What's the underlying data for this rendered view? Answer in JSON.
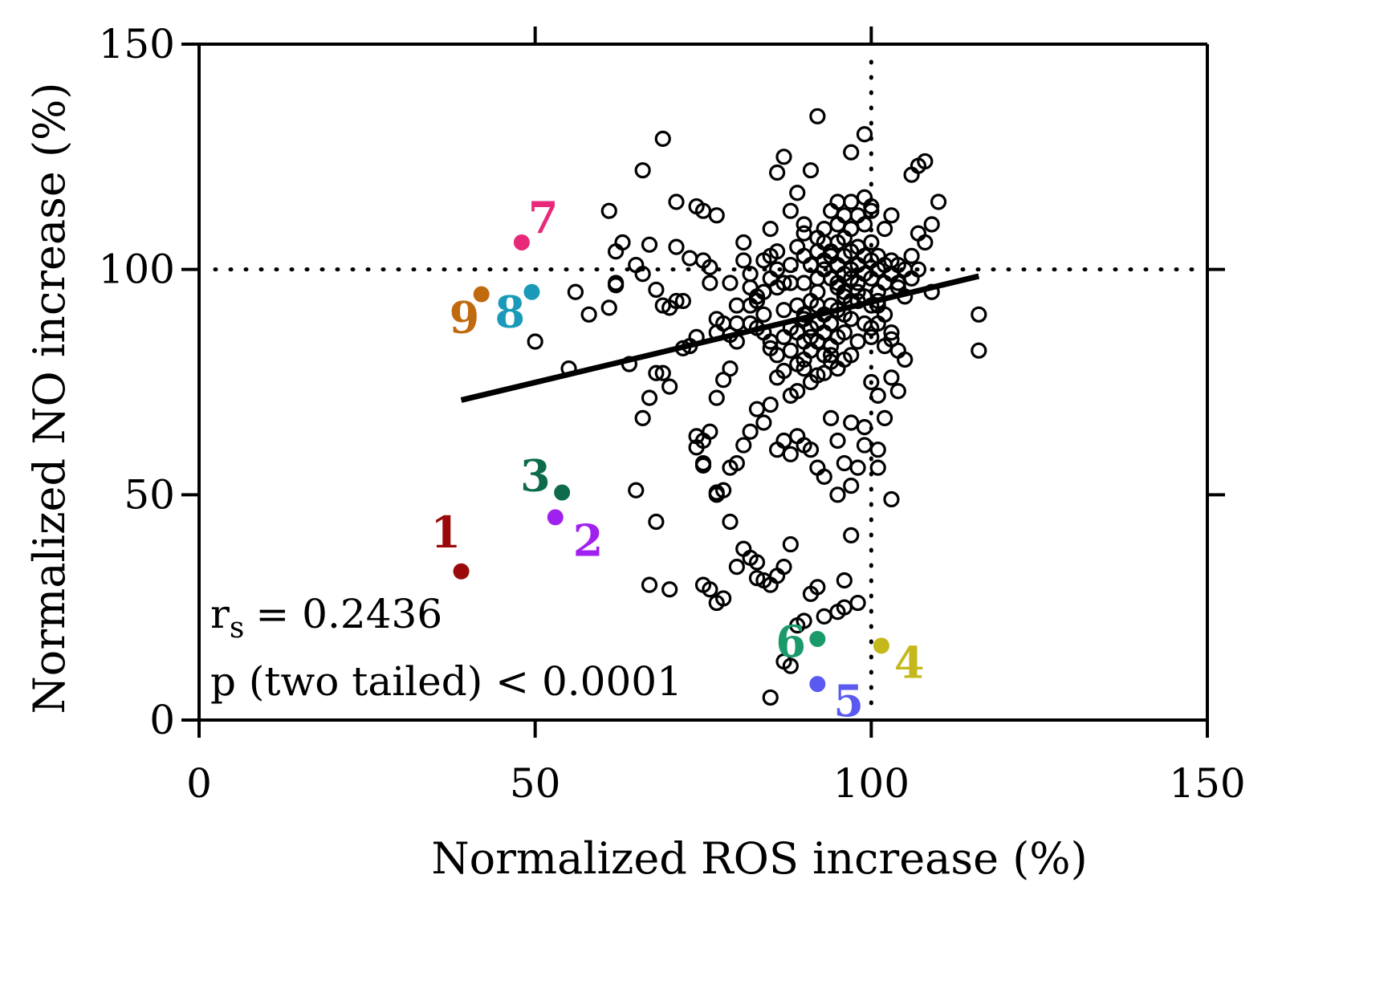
{
  "chart_data": {
    "type": "scatter",
    "xlabel": "Normalized ROS increase (%)",
    "ylabel": "Normalized NO increase (%)",
    "xlim": [
      0,
      150
    ],
    "ylim": [
      0,
      150
    ],
    "x_ticks": [
      "0",
      "50",
      "100",
      "150"
    ],
    "y_ticks": [
      "0",
      "50",
      "100",
      "150"
    ],
    "reference_lines": {
      "x": 100,
      "y": 100,
      "style": "dotted"
    },
    "regression_line": {
      "x": [
        39,
        116
      ],
      "y": [
        71,
        98.5
      ]
    },
    "statistics": {
      "rs_symbol": "r",
      "rs_subscript": "s",
      "rs_value": "= 0.2436",
      "p_text": "p (two tailed) < 0.0001"
    },
    "highlighted_points": [
      {
        "label": "1",
        "x": 39,
        "y": 33,
        "color": "#9b0a0a"
      },
      {
        "label": "2",
        "x": 53,
        "y": 45,
        "color": "#a020f0"
      },
      {
        "label": "3",
        "x": 54,
        "y": 50.5,
        "color": "#0d6b4b"
      },
      {
        "label": "4",
        "x": 101.5,
        "y": 16.5,
        "color": "#c4b81a"
      },
      {
        "label": "5",
        "x": 92,
        "y": 8,
        "color": "#5a5af0"
      },
      {
        "label": "6",
        "x": 92,
        "y": 18,
        "color": "#1a9a6a"
      },
      {
        "label": "7",
        "x": 48,
        "y": 106,
        "color": "#e8297a"
      },
      {
        "label": "8",
        "x": 49.5,
        "y": 95,
        "color": "#1a9ab8"
      },
      {
        "label": "9",
        "x": 42,
        "y": 94.5,
        "color": "#c06a10"
      }
    ],
    "series": [
      {
        "marker": "open-circle",
        "points": [
          [
            61,
            113
          ],
          [
            62,
            104
          ],
          [
            63,
            106
          ],
          [
            62,
            97
          ],
          [
            62,
            96.5
          ],
          [
            61,
            91.5
          ],
          [
            65,
            101
          ],
          [
            66,
            99
          ],
          [
            67,
            105.5
          ],
          [
            68,
            95.5
          ],
          [
            69,
            92
          ],
          [
            70,
            91.5
          ],
          [
            71,
            105
          ],
          [
            71,
            93
          ],
          [
            72,
            93
          ],
          [
            73,
            102.5
          ],
          [
            74,
            114
          ],
          [
            75,
            113
          ],
          [
            75,
            102
          ],
          [
            76,
            100.5
          ],
          [
            76,
            97
          ],
          [
            77,
            112
          ],
          [
            77,
            89
          ],
          [
            77,
            86
          ],
          [
            78,
            88
          ],
          [
            66,
            122
          ],
          [
            69,
            129
          ],
          [
            71,
            115
          ],
          [
            58,
            90
          ],
          [
            56,
            95
          ],
          [
            50,
            84
          ],
          [
            55,
            78
          ],
          [
            64,
            79
          ],
          [
            66,
            67
          ],
          [
            67,
            71.5
          ],
          [
            68,
            77
          ],
          [
            69,
            77
          ],
          [
            70,
            74
          ],
          [
            72,
            82.5
          ],
          [
            73,
            83
          ],
          [
            74,
            85
          ],
          [
            74,
            63
          ],
          [
            74,
            60.5
          ],
          [
            75,
            62
          ],
          [
            75,
            56.5
          ],
          [
            77,
            71.5
          ],
          [
            78,
            75.5
          ],
          [
            79,
            78
          ],
          [
            79,
            85.5
          ],
          [
            77,
            50.5
          ],
          [
            80,
            84
          ],
          [
            80,
            88
          ],
          [
            79,
            97
          ],
          [
            81,
            102
          ],
          [
            81,
            106
          ],
          [
            82,
            92
          ],
          [
            82,
            96
          ],
          [
            82,
            99
          ],
          [
            83,
            93
          ],
          [
            83,
            94
          ],
          [
            84,
            90
          ],
          [
            84,
            102
          ],
          [
            84,
            95
          ],
          [
            85,
            98
          ],
          [
            85,
            109
          ],
          [
            85,
            103
          ],
          [
            86,
            104
          ],
          [
            86,
            100
          ],
          [
            86,
            96
          ],
          [
            86,
            121.5
          ],
          [
            87,
            125
          ],
          [
            87,
            97
          ],
          [
            87,
            91
          ],
          [
            88,
            101
          ],
          [
            88,
            113
          ],
          [
            88,
            97
          ],
          [
            89,
            117
          ],
          [
            89,
            105
          ],
          [
            89,
            92
          ],
          [
            90,
            110
          ],
          [
            90,
            108
          ],
          [
            90,
            103
          ],
          [
            90,
            97
          ],
          [
            90,
            90
          ],
          [
            91,
            122
          ],
          [
            91,
            101
          ],
          [
            91,
            93
          ],
          [
            92,
            104
          ],
          [
            92,
            107
          ],
          [
            92,
            98
          ],
          [
            92,
            95
          ],
          [
            93,
            100
          ],
          [
            93,
            106
          ],
          [
            93,
            102
          ],
          [
            93,
            109
          ],
          [
            94,
            98
          ],
          [
            94,
            103
          ],
          [
            94,
            113
          ],
          [
            94,
            104
          ],
          [
            95,
            97
          ],
          [
            95,
            101
          ],
          [
            95,
            106
          ],
          [
            95,
            110
          ],
          [
            95,
            115
          ],
          [
            96,
            99
          ],
          [
            96,
            103
          ],
          [
            96,
            112
          ],
          [
            96,
            95
          ],
          [
            96,
            107
          ],
          [
            97,
            104
          ],
          [
            97,
            100
          ],
          [
            97,
            115
          ],
          [
            97,
            109
          ],
          [
            98,
            101
          ],
          [
            98,
            105
          ],
          [
            98,
            97
          ],
          [
            98,
            112
          ],
          [
            99,
            99
          ],
          [
            99,
            103
          ],
          [
            99,
            110
          ],
          [
            99,
            116
          ],
          [
            100,
            102
          ],
          [
            100,
            98
          ],
          [
            100,
            106
          ],
          [
            100,
            113
          ],
          [
            100,
            114
          ],
          [
            101,
            100
          ],
          [
            101,
            95
          ],
          [
            101,
            103
          ],
          [
            102,
            101
          ],
          [
            102,
            97
          ],
          [
            102,
            109
          ],
          [
            103,
            112
          ],
          [
            103,
            102
          ],
          [
            104,
            101
          ],
          [
            104,
            96
          ],
          [
            105,
            100
          ],
          [
            106,
            103
          ],
          [
            106,
            98
          ],
          [
            107,
            100
          ],
          [
            107,
            108
          ],
          [
            108,
            106
          ],
          [
            109,
            110
          ],
          [
            106,
            121
          ],
          [
            107,
            123
          ],
          [
            108,
            124
          ],
          [
            110,
            115
          ],
          [
            109,
            95
          ],
          [
            92,
            134
          ],
          [
            99,
            130
          ],
          [
            97,
            126
          ],
          [
            116,
            90
          ],
          [
            116,
            82
          ],
          [
            80,
            92
          ],
          [
            82,
            88
          ],
          [
            83,
            87
          ],
          [
            84,
            86
          ],
          [
            85,
            82.5
          ],
          [
            86,
            81
          ],
          [
            85,
            84
          ],
          [
            87,
            85
          ],
          [
            88,
            87
          ],
          [
            89,
            86
          ],
          [
            90,
            89
          ],
          [
            91,
            87
          ],
          [
            92,
            92
          ],
          [
            93,
            90
          ],
          [
            94,
            88
          ],
          [
            95,
            91
          ],
          [
            96,
            86
          ],
          [
            97,
            89
          ],
          [
            98,
            84
          ],
          [
            99,
            88
          ],
          [
            100,
            85
          ],
          [
            101,
            88
          ],
          [
            102,
            83
          ],
          [
            103,
            86
          ],
          [
            104,
            82
          ],
          [
            105,
            80
          ],
          [
            103,
            84.5
          ],
          [
            101,
            92
          ],
          [
            100,
            87
          ],
          [
            97,
            81
          ],
          [
            96,
            80
          ],
          [
            95,
            78
          ],
          [
            94,
            79.5
          ],
          [
            93,
            77
          ],
          [
            92,
            76.5
          ],
          [
            91,
            75
          ],
          [
            90,
            78
          ],
          [
            89,
            73
          ],
          [
            88,
            72
          ],
          [
            87,
            77.5
          ],
          [
            86,
            76
          ],
          [
            85,
            70
          ],
          [
            84,
            66
          ],
          [
            83,
            69
          ],
          [
            82,
            64
          ],
          [
            81,
            61
          ],
          [
            80,
            57
          ],
          [
            79,
            56
          ],
          [
            78,
            51
          ],
          [
            77,
            50
          ],
          [
            76,
            64
          ],
          [
            75,
            57
          ],
          [
            86,
            60
          ],
          [
            87,
            62
          ],
          [
            88,
            59
          ],
          [
            89,
            63
          ],
          [
            90,
            61
          ],
          [
            91,
            60
          ],
          [
            92,
            56
          ],
          [
            93,
            54
          ],
          [
            94,
            67
          ],
          [
            95,
            62
          ],
          [
            96,
            57
          ],
          [
            97,
            66
          ],
          [
            98,
            56
          ],
          [
            99,
            65
          ],
          [
            100,
            75
          ],
          [
            101,
            72
          ],
          [
            102,
            67
          ],
          [
            103,
            76
          ],
          [
            104,
            73
          ],
          [
            88,
            39
          ],
          [
            87,
            34
          ],
          [
            86,
            32
          ],
          [
            85,
            30
          ],
          [
            84,
            31
          ],
          [
            83,
            35
          ],
          [
            82,
            36
          ],
          [
            81,
            38
          ],
          [
            80,
            34
          ],
          [
            79,
            44
          ],
          [
            78,
            27
          ],
          [
            77,
            26
          ],
          [
            76,
            29
          ],
          [
            75,
            30
          ],
          [
            96,
            31
          ],
          [
            97,
            41
          ],
          [
            93,
            23
          ],
          [
            95,
            24
          ],
          [
            96,
            25
          ],
          [
            98,
            26
          ],
          [
            87,
            13
          ],
          [
            85,
            5
          ],
          [
            88,
            12
          ],
          [
            89,
            21
          ],
          [
            90,
            22
          ],
          [
            91,
            28
          ],
          [
            92,
            29.5
          ],
          [
            83,
            31.5
          ],
          [
            103,
            49
          ],
          [
            101,
            56
          ],
          [
            97,
            52
          ],
          [
            95,
            50
          ],
          [
            65,
            51
          ],
          [
            68,
            44
          ],
          [
            67,
            30
          ],
          [
            70,
            29
          ],
          [
            101,
            60
          ],
          [
            99,
            61
          ],
          [
            94,
            81
          ],
          [
            95,
            85
          ],
          [
            96,
            90
          ],
          [
            97,
            93
          ],
          [
            98,
            95
          ],
          [
            99,
            94
          ],
          [
            100,
            92
          ],
          [
            101,
            93
          ],
          [
            102,
            90
          ],
          [
            103,
            99
          ],
          [
            104,
            97
          ],
          [
            105,
            94
          ],
          [
            90,
            80
          ],
          [
            91,
            82
          ],
          [
            92,
            84
          ],
          [
            93,
            81
          ],
          [
            94,
            83
          ],
          [
            88,
            82
          ],
          [
            89,
            79
          ],
          [
            90,
            84
          ],
          [
            91,
            85
          ],
          [
            92,
            88
          ],
          [
            93,
            86
          ],
          [
            94,
            92
          ],
          [
            95,
            96
          ],
          [
            96,
            94
          ],
          [
            97,
            98
          ],
          [
            98,
            93
          ]
        ]
      }
    ]
  }
}
